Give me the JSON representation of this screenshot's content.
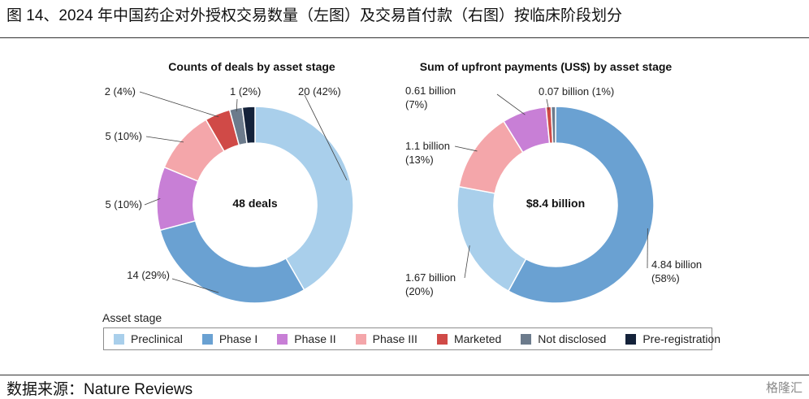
{
  "figure_title": "图 14、2024 年中国药企对外授权交易数量（左图）及交易首付款（右图）按临床阶段划分",
  "source": "数据来源：Nature Reviews",
  "logo_text": "格隆汇",
  "legend": {
    "title": "Asset stage",
    "items": [
      {
        "label": "Preclinical",
        "color": "#a9cfeb"
      },
      {
        "label": "Phase I",
        "color": "#6aa1d2"
      },
      {
        "label": "Phase II",
        "color": "#c87fd6"
      },
      {
        "label": "Phase III",
        "color": "#f4a6aa"
      },
      {
        "label": "Marketed",
        "color": "#d04a47"
      },
      {
        "label": "Not disclosed",
        "color": "#6c7b8c"
      },
      {
        "label": "Pre-registration",
        "color": "#14223a"
      }
    ]
  },
  "chart_data": [
    {
      "type": "pie",
      "title": "Counts of deals by asset stage",
      "center_label": "48 deals",
      "slices": [
        {
          "stage": "Preclinical",
          "value": 20,
          "label": "20 (42%)"
        },
        {
          "stage": "Phase I",
          "value": 14,
          "label": "14 (29%)"
        },
        {
          "stage": "Phase II",
          "value": 5,
          "label": "5 (10%)"
        },
        {
          "stage": "Phase III",
          "value": 5,
          "label": "5 (10%)"
        },
        {
          "stage": "Marketed",
          "value": 2,
          "label": "2 (4%)"
        },
        {
          "stage": "Not disclosed",
          "value": 1,
          "label": "1 (2%)"
        },
        {
          "stage": "Pre-registration",
          "value": 1,
          "label": ""
        }
      ]
    },
    {
      "type": "pie",
      "title": "Sum of upfront payments (US$) by asset stage",
      "center_label": "$8.4 billion",
      "slices": [
        {
          "stage": "Phase I",
          "value": 4.84,
          "label": "4.84 billion\n(58%)"
        },
        {
          "stage": "Preclinical",
          "value": 1.67,
          "label": "1.67 billion\n(20%)"
        },
        {
          "stage": "Phase III",
          "value": 1.1,
          "label": "1.1 billion\n(13%)"
        },
        {
          "stage": "Phase II",
          "value": 0.61,
          "label": "0.61 billion\n(7%)"
        },
        {
          "stage": "Marketed",
          "value": 0.07,
          "label": "0.07 billion (1%)"
        },
        {
          "stage": "Not disclosed",
          "value": 0.06,
          "label": ""
        }
      ]
    }
  ]
}
